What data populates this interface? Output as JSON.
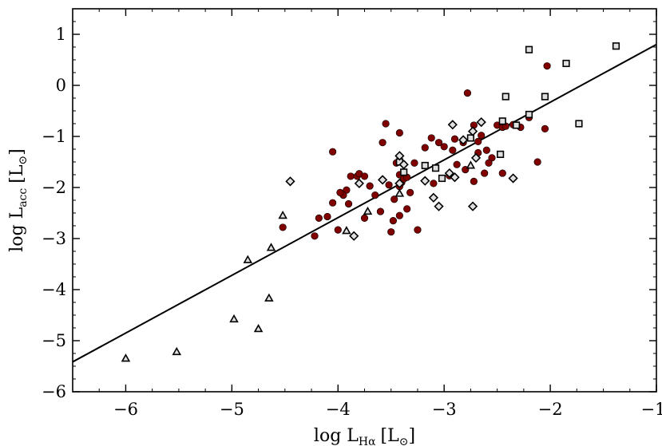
{
  "chart_data": {
    "type": "scatter",
    "xlabel": "log  L",
    "xlabel_sub": "Hα",
    "xlabel_unit": "[L",
    "ylabel": "log  L",
    "ylabel_sub": "acc",
    "ylabel_unit": "[L",
    "unit_symbol": "⊙",
    "unit_close": "]",
    "xlim": [
      -6.5,
      -1
    ],
    "ylim": [
      -6,
      1.5
    ],
    "x_ticks": [
      -6,
      -5,
      -4,
      -3,
      -2,
      -1
    ],
    "y_ticks": [
      -6,
      -5,
      -4,
      -3,
      -2,
      -1,
      0,
      1
    ],
    "x_tick_labels": [
      "−6",
      "−5",
      "−4",
      "−3",
      "−2",
      "−1"
    ],
    "y_tick_labels": [
      "−6",
      "−5",
      "−4",
      "−3",
      "−2",
      "−1",
      "0",
      "1"
    ],
    "grid": false,
    "legend": "none",
    "colors": {
      "circle_fill": "#800000",
      "open_fill": "#e0e0e0",
      "line": "#000000"
    },
    "fit_line": {
      "slope": 1.13,
      "intercept": 1.93
    },
    "series": [
      {
        "marker": "circle",
        "points": [
          [
            -4.05,
            -1.3
          ],
          [
            -3.55,
            -0.75
          ],
          [
            -3.42,
            -0.93
          ],
          [
            -3.28,
            -1.52
          ],
          [
            -3.18,
            -1.22
          ],
          [
            -3.12,
            -1.03
          ],
          [
            -3.05,
            -1.12
          ],
          [
            -3.0,
            -1.2
          ],
          [
            -2.92,
            -1.27
          ],
          [
            -2.9,
            -1.05
          ],
          [
            -2.82,
            -1.12
          ],
          [
            -2.78,
            -0.15
          ],
          [
            -2.72,
            -0.78
          ],
          [
            -2.68,
            -1.1
          ],
          [
            -2.65,
            -0.98
          ],
          [
            -2.6,
            -1.27
          ],
          [
            -2.55,
            -1.42
          ],
          [
            -2.5,
            -0.78
          ],
          [
            -2.45,
            -0.82
          ],
          [
            -2.42,
            -0.8
          ],
          [
            -2.35,
            -0.77
          ],
          [
            -2.28,
            -0.82
          ],
          [
            -2.2,
            -0.63
          ],
          [
            -2.12,
            -1.5
          ],
          [
            -2.05,
            -0.85
          ],
          [
            -2.03,
            0.38
          ],
          [
            -3.58,
            -1.12
          ],
          [
            -3.45,
            -1.52
          ],
          [
            -3.42,
            -1.75
          ],
          [
            -3.4,
            -1.9
          ],
          [
            -3.38,
            -1.83
          ],
          [
            -3.35,
            -1.8
          ],
          [
            -3.42,
            -1.98
          ],
          [
            -3.47,
            -2.23
          ],
          [
            -3.52,
            -1.95
          ],
          [
            -3.32,
            -2.1
          ],
          [
            -3.88,
            -1.78
          ],
          [
            -3.82,
            -1.78
          ],
          [
            -3.8,
            -1.73
          ],
          [
            -3.75,
            -1.78
          ],
          [
            -3.7,
            -1.97
          ],
          [
            -3.65,
            -2.15
          ],
          [
            -3.92,
            -2.05
          ],
          [
            -3.95,
            -2.15
          ],
          [
            -3.9,
            -2.32
          ],
          [
            -3.98,
            -2.1
          ],
          [
            -4.05,
            -2.3
          ],
          [
            -4.1,
            -2.57
          ],
          [
            -4.18,
            -2.6
          ],
          [
            -4.52,
            -2.78
          ],
          [
            -4.22,
            -2.95
          ],
          [
            -4.0,
            -2.83
          ],
          [
            -3.75,
            -2.6
          ],
          [
            -3.6,
            -2.47
          ],
          [
            -3.48,
            -2.65
          ],
          [
            -3.42,
            -2.55
          ],
          [
            -3.35,
            -2.42
          ],
          [
            -3.5,
            -2.87
          ],
          [
            -3.25,
            -2.83
          ],
          [
            -3.1,
            -1.92
          ],
          [
            -2.95,
            -1.77
          ],
          [
            -2.8,
            -1.65
          ],
          [
            -2.72,
            -1.88
          ],
          [
            -2.62,
            -1.72
          ],
          [
            -2.45,
            -1.72
          ],
          [
            -2.58,
            -1.52
          ],
          [
            -2.68,
            -1.32
          ],
          [
            -2.88,
            -1.55
          ]
        ]
      },
      {
        "marker": "square",
        "points": [
          [
            -2.2,
            0.7
          ],
          [
            -1.85,
            0.43
          ],
          [
            -1.38,
            0.77
          ],
          [
            -2.42,
            -0.22
          ],
          [
            -2.05,
            -0.22
          ],
          [
            -2.2,
            -0.57
          ],
          [
            -2.45,
            -0.7
          ],
          [
            -2.32,
            -0.78
          ],
          [
            -1.73,
            -0.75
          ],
          [
            -2.75,
            -1.03
          ],
          [
            -2.47,
            -1.35
          ],
          [
            -3.42,
            -1.5
          ],
          [
            -3.08,
            -1.62
          ],
          [
            -3.02,
            -1.82
          ],
          [
            -3.18,
            -1.57
          ],
          [
            -3.38,
            -1.7
          ]
        ]
      },
      {
        "marker": "diamond",
        "points": [
          [
            -2.92,
            -0.77
          ],
          [
            -2.82,
            -1.07
          ],
          [
            -2.73,
            -0.9
          ],
          [
            -2.65,
            -0.72
          ],
          [
            -2.7,
            -1.42
          ],
          [
            -2.95,
            -1.72
          ],
          [
            -3.42,
            -1.38
          ],
          [
            -3.38,
            -1.55
          ],
          [
            -3.18,
            -1.87
          ],
          [
            -3.1,
            -2.2
          ],
          [
            -3.05,
            -2.37
          ],
          [
            -2.9,
            -1.8
          ],
          [
            -3.58,
            -1.85
          ],
          [
            -3.8,
            -1.92
          ],
          [
            -3.42,
            -1.92
          ],
          [
            -4.45,
            -1.88
          ],
          [
            -3.85,
            -2.95
          ],
          [
            -2.35,
            -1.82
          ],
          [
            -2.73,
            -2.37
          ]
        ]
      },
      {
        "marker": "triangle",
        "points": [
          [
            -6.0,
            -5.35
          ],
          [
            -5.52,
            -5.22
          ],
          [
            -4.98,
            -4.58
          ],
          [
            -4.75,
            -4.77
          ],
          [
            -4.65,
            -4.17
          ],
          [
            -4.85,
            -3.42
          ],
          [
            -4.63,
            -3.18
          ],
          [
            -4.52,
            -2.55
          ],
          [
            -3.92,
            -2.85
          ],
          [
            -3.72,
            -2.47
          ],
          [
            -3.42,
            -2.12
          ],
          [
            -2.75,
            -1.57
          ]
        ]
      }
    ]
  }
}
